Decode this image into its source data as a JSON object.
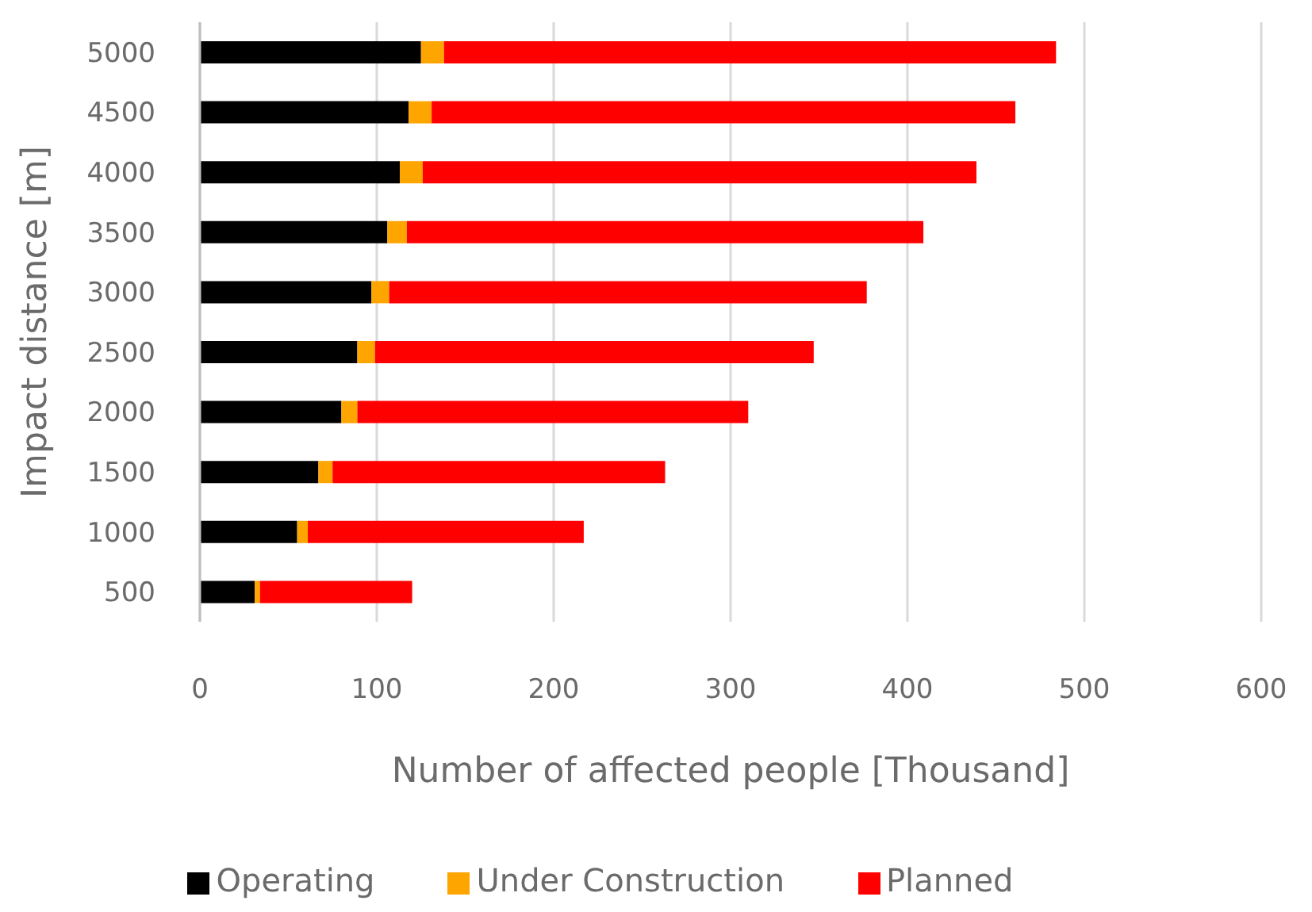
{
  "chart_data": {
    "type": "bar",
    "orientation": "horizontal",
    "stacked": true,
    "xlabel": "Number of affected people [Thousand]",
    "ylabel": "Impact distance [m]",
    "categories": [
      "5000",
      "4500",
      "4000",
      "3500",
      "3000",
      "2500",
      "2000",
      "1500",
      "1000",
      "500"
    ],
    "series": [
      {
        "name": "Operating",
        "color": "#000000",
        "values": [
          125,
          118,
          113,
          106,
          97,
          89,
          80,
          67,
          55,
          31
        ]
      },
      {
        "name": "Under Construction",
        "color": "#ffa500",
        "values": [
          13,
          13,
          13,
          11,
          10,
          10,
          9,
          8,
          6,
          3
        ]
      },
      {
        "name": "Planned",
        "color": "#ff0000",
        "values": [
          346,
          330,
          313,
          292,
          270,
          248,
          221,
          188,
          156,
          86
        ]
      }
    ],
    "xlim": [
      0,
      600
    ],
    "xticks": [
      0,
      100,
      200,
      300,
      400,
      500,
      600
    ],
    "grid": "x",
    "legend": "bottom"
  }
}
